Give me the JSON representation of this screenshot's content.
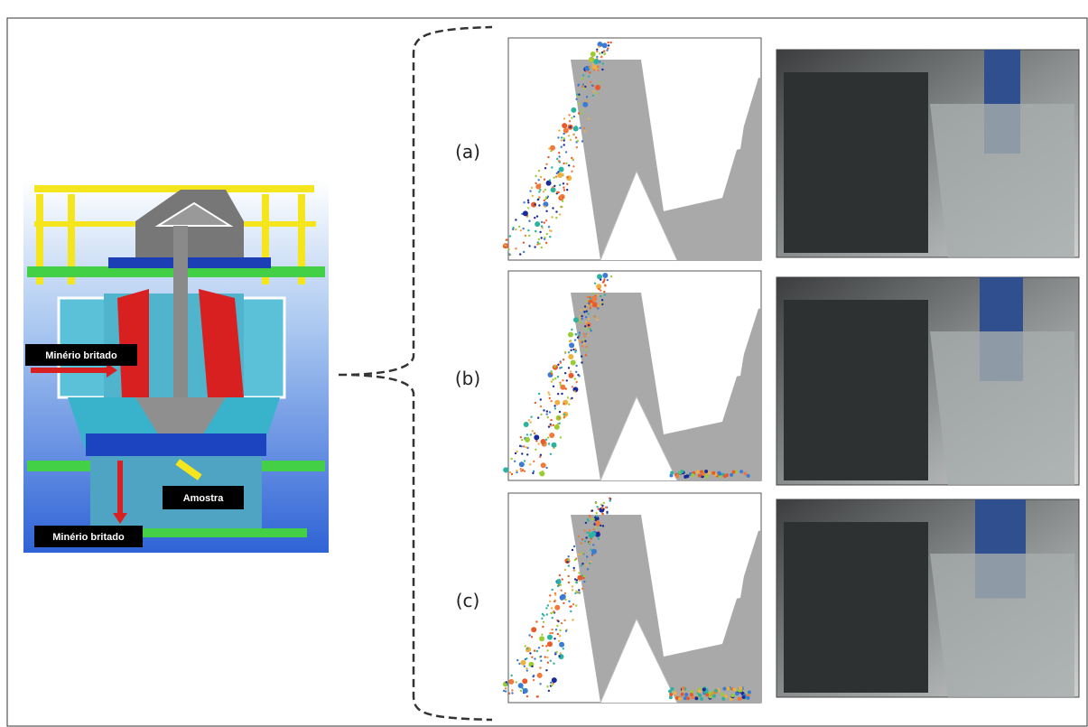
{
  "machine": {
    "label_ore_in": "Minério britado",
    "label_sample": "Amostra",
    "label_ore_out": "Minério britado"
  },
  "panels": [
    {
      "label": "(a)"
    },
    {
      "label": "(b)"
    },
    {
      "label": "(c)"
    }
  ]
}
